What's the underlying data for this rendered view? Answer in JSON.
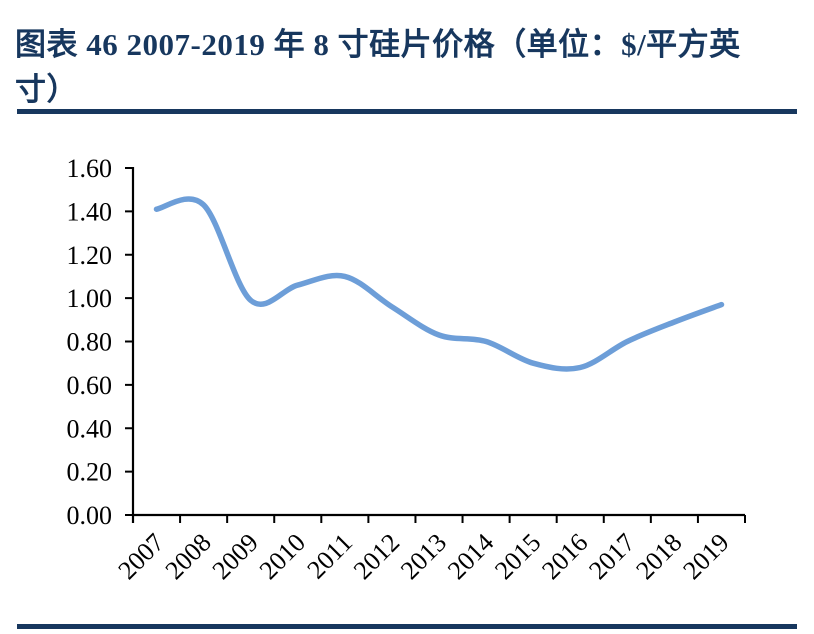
{
  "header": {
    "title_line1": "图表 46  2007-2019 年 8 寸硅片价格（单位：$/平方英",
    "title_line2": "寸）",
    "full_title": "图表 46 2007-2019 年 8 寸硅片价格（单位：$/平方英寸）"
  },
  "colors": {
    "accent_navy": "#17375E",
    "line_blue": "#6D9ED8",
    "axis_black": "#000000"
  },
  "chart_data": {
    "type": "line",
    "title": "2007-2019 年 8 寸硅片价格",
    "unit": "$/平方英寸",
    "categories": [
      "2007",
      "2008",
      "2009",
      "2010",
      "2011",
      "2012",
      "2013",
      "2014",
      "2015",
      "2016",
      "2017",
      "2018",
      "2019"
    ],
    "values": [
      1.41,
      1.43,
      0.99,
      1.06,
      1.1,
      0.96,
      0.83,
      0.8,
      0.7,
      0.68,
      0.8,
      0.89,
      0.97
    ],
    "ylim": [
      0,
      1.6
    ],
    "ytick_step": 0.2,
    "ytick_labels": [
      "0.00",
      "0.20",
      "0.40",
      "0.60",
      "0.80",
      "1.00",
      "1.20",
      "1.40",
      "1.60"
    ],
    "xlabel": "",
    "ylabel": "",
    "grid": false,
    "legend": "none",
    "smooth": true,
    "line_color": "#6D9ED8"
  }
}
